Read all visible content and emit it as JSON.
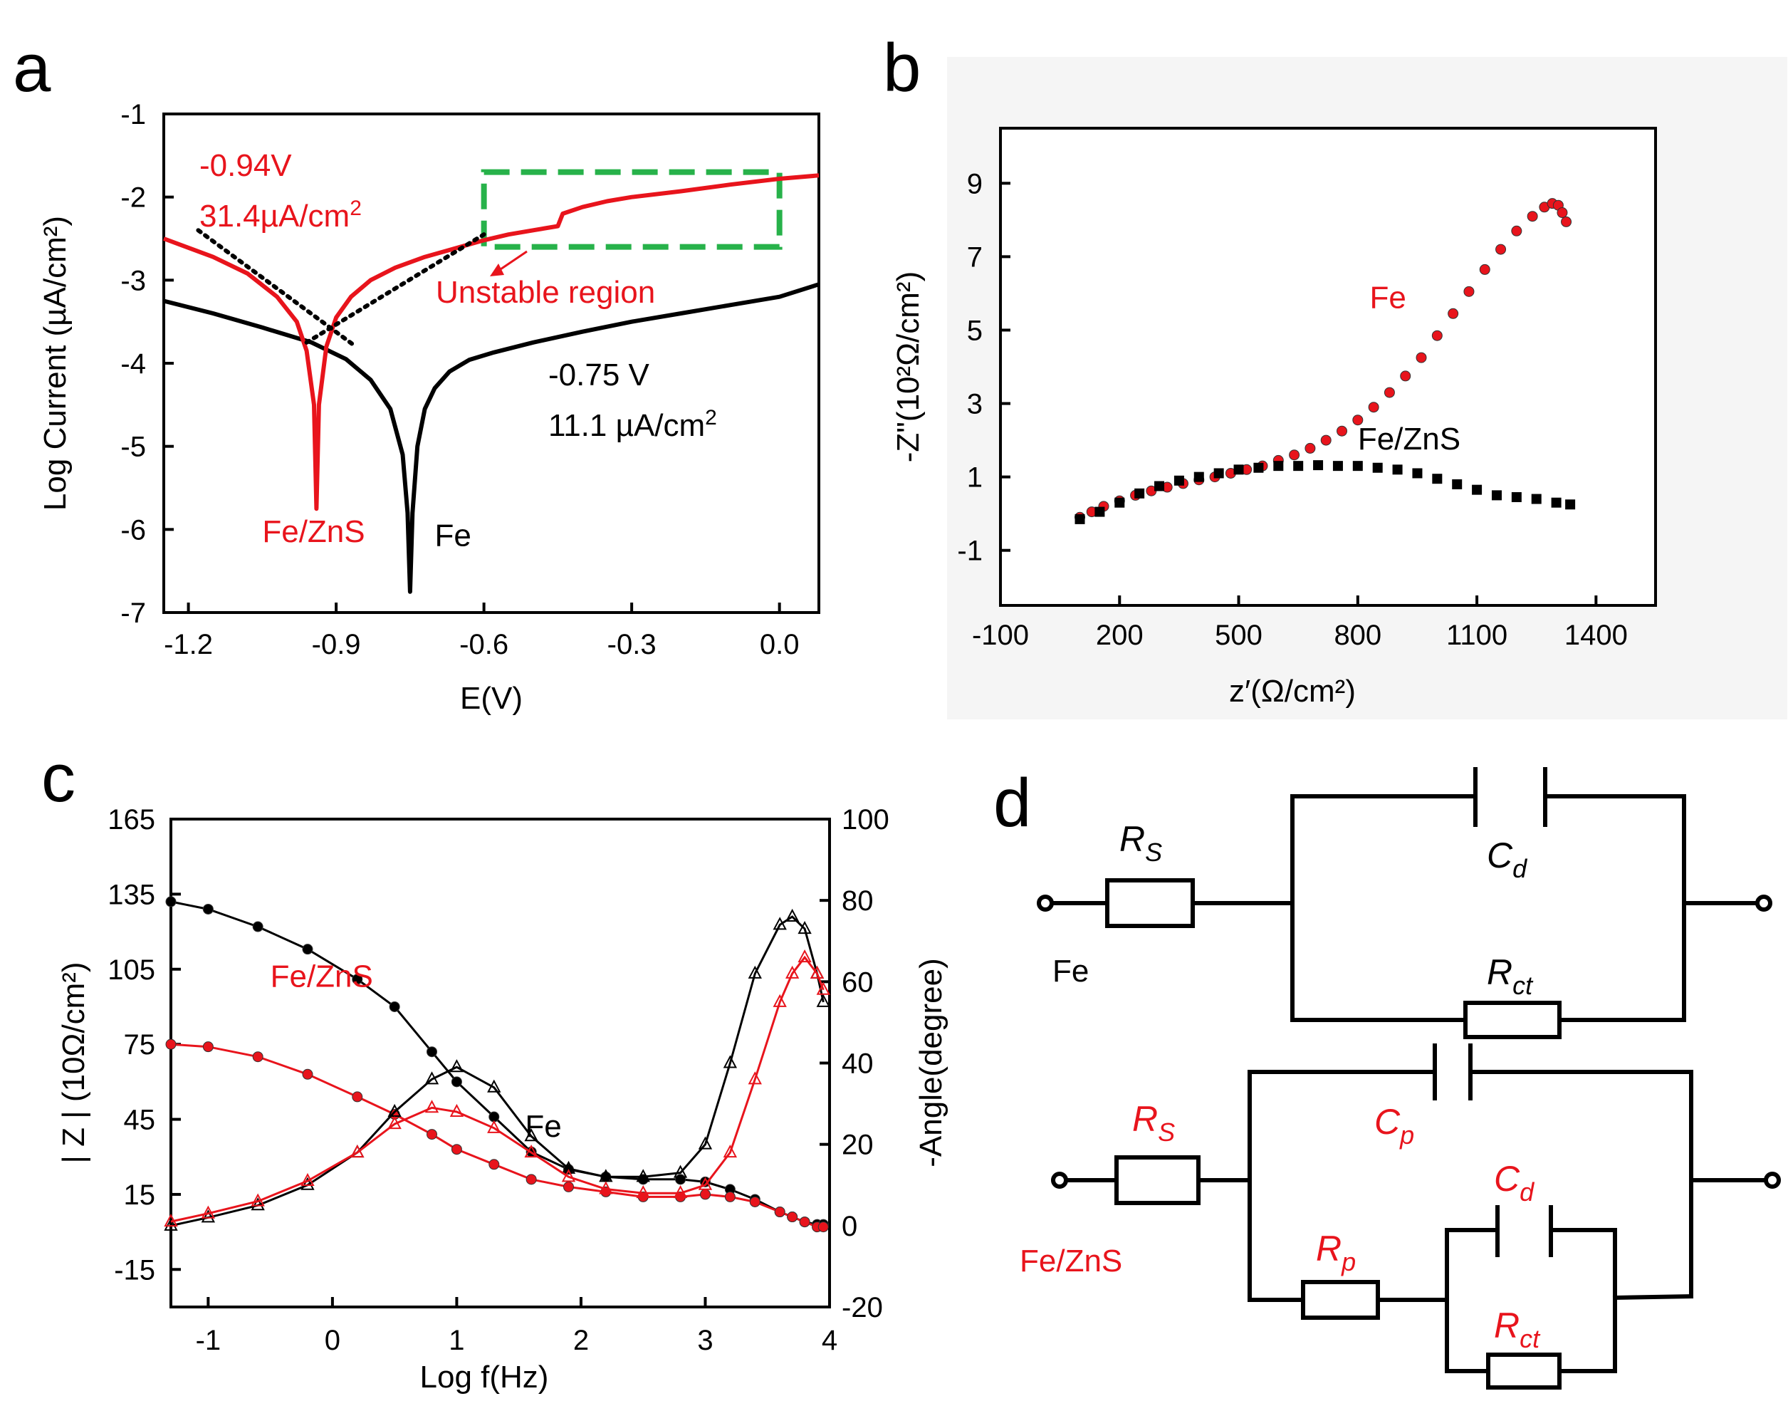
{
  "colors": {
    "fe": "#000000",
    "fezns": "#e8141c",
    "unstable_box": "#27b24a",
    "axis": "#000000"
  },
  "chart_data": [
    {
      "panel_label": "a",
      "type": "line",
      "title": "",
      "xlabel": "E(V)",
      "ylabel": "Log Current (µA/cm²)",
      "xlim": [
        -1.25,
        0.08
      ],
      "ylim": [
        -7,
        -1
      ],
      "x_ticks": [
        -1.2,
        -0.9,
        -0.6,
        -0.3,
        0.0
      ],
      "x_tick_labels": [
        "-1.2",
        "-0.9",
        "-0.6",
        "-0.3",
        "0.0"
      ],
      "y_ticks": [
        -1,
        -2,
        -3,
        -4,
        -5,
        -6,
        -7
      ],
      "y_tick_labels": [
        "-1",
        "-2",
        "-3",
        "-4",
        "-5",
        "-6",
        "-7"
      ],
      "series": [
        {
          "name": "Fe",
          "color": "#000000",
          "label": "Fe",
          "label_at": [
            -0.7,
            -6.2
          ],
          "x": [
            -1.25,
            -1.15,
            -1.05,
            -0.95,
            -0.88,
            -0.83,
            -0.79,
            -0.765,
            -0.755,
            -0.75,
            -0.745,
            -0.735,
            -0.72,
            -0.7,
            -0.67,
            -0.63,
            -0.58,
            -0.5,
            -0.4,
            -0.3,
            -0.2,
            -0.1,
            0.0,
            0.08
          ],
          "y": [
            -3.25,
            -3.4,
            -3.57,
            -3.75,
            -3.95,
            -4.2,
            -4.55,
            -5.1,
            -5.8,
            -6.75,
            -5.8,
            -5.0,
            -4.55,
            -4.3,
            -4.1,
            -3.96,
            -3.87,
            -3.75,
            -3.62,
            -3.5,
            -3.4,
            -3.3,
            -3.2,
            -3.05
          ]
        },
        {
          "name": "Fe/ZnS",
          "color": "#e8141c",
          "label": "Fe/ZnS",
          "label_at": [
            -1.05,
            -6.15
          ],
          "x": [
            -1.25,
            -1.15,
            -1.08,
            -1.02,
            -0.98,
            -0.96,
            -0.945,
            -0.94,
            -0.935,
            -0.92,
            -0.9,
            -0.87,
            -0.83,
            -0.78,
            -0.72,
            -0.66,
            -0.6,
            -0.55,
            -0.5,
            -0.45,
            -0.44,
            -0.4,
            -0.35,
            -0.3,
            -0.2,
            -0.1,
            0.0,
            0.08
          ],
          "y": [
            -2.5,
            -2.72,
            -2.92,
            -3.2,
            -3.5,
            -3.85,
            -4.5,
            -5.75,
            -4.5,
            -3.8,
            -3.45,
            -3.2,
            -3.0,
            -2.85,
            -2.72,
            -2.62,
            -2.52,
            -2.45,
            -2.4,
            -2.35,
            -2.2,
            -2.12,
            -2.05,
            -2.0,
            -1.93,
            -1.85,
            -1.78,
            -1.74
          ]
        }
      ],
      "tafel_lines": [
        {
          "x": [
            -1.18,
            -0.86
          ],
          "y": [
            -2.4,
            -3.8
          ]
        },
        {
          "x": [
            -0.96,
            -0.6
          ],
          "y": [
            -3.75,
            -2.45
          ]
        }
      ],
      "annotations": {
        "fezns_potential": "-0.94V",
        "fezns_current": "31.4µA/cm",
        "fezns_current_sup": "2",
        "fe_potential": "-0.75 V",
        "fe_current": "11.1 µA/cm",
        "fe_current_sup": "2",
        "unstable_region": "Unstable region",
        "unstable_box": {
          "x": [
            -0.6,
            0.0
          ],
          "y": [
            -1.7,
            -2.6
          ]
        }
      }
    },
    {
      "panel_label": "b",
      "type": "scatter",
      "title": "",
      "xlabel": "z′(Ω/cm²)",
      "ylabel": "-Z\"(10²Ω/cm²)",
      "xlim": [
        -100,
        1550
      ],
      "ylim": [
        -2.5,
        10.5
      ],
      "x_ticks": [
        -100,
        200,
        500,
        800,
        1100,
        1400
      ],
      "x_tick_labels": [
        "-100",
        "200",
        "500",
        "800",
        "1100",
        "1400"
      ],
      "y_ticks": [
        -1,
        1,
        3,
        5,
        7,
        9
      ],
      "y_tick_labels": [
        "-1",
        "1",
        "3",
        "5",
        "7",
        "9"
      ],
      "series": [
        {
          "name": "Fe",
          "color": "#e8141c",
          "marker": "circle",
          "label": "Fe",
          "label_at": [
            830,
            5.6
          ],
          "x": [
            100,
            130,
            160,
            200,
            240,
            280,
            320,
            360,
            400,
            440,
            480,
            520,
            560,
            600,
            640,
            680,
            720,
            760,
            800,
            840,
            880,
            920,
            960,
            1000,
            1040,
            1080,
            1120,
            1160,
            1200,
            1240,
            1270,
            1290,
            1305,
            1315,
            1325
          ],
          "y": [
            -0.1,
            0.05,
            0.2,
            0.35,
            0.5,
            0.62,
            0.72,
            0.82,
            0.92,
            1.0,
            1.1,
            1.2,
            1.3,
            1.45,
            1.6,
            1.78,
            2.0,
            2.25,
            2.55,
            2.9,
            3.3,
            3.75,
            4.25,
            4.85,
            5.45,
            6.05,
            6.65,
            7.2,
            7.7,
            8.1,
            8.35,
            8.45,
            8.4,
            8.2,
            7.95
          ]
        },
        {
          "name": "Fe/ZnS",
          "color": "#000000",
          "marker": "square",
          "label": "Fe/ZnS",
          "label_at": [
            800,
            1.75
          ],
          "x": [
            100,
            150,
            200,
            250,
            300,
            350,
            400,
            450,
            500,
            550,
            600,
            650,
            700,
            750,
            800,
            850,
            900,
            950,
            1000,
            1050,
            1100,
            1150,
            1200,
            1250,
            1300,
            1335
          ],
          "y": [
            -0.15,
            0.05,
            0.3,
            0.55,
            0.75,
            0.9,
            1.0,
            1.1,
            1.2,
            1.25,
            1.3,
            1.3,
            1.32,
            1.3,
            1.3,
            1.25,
            1.2,
            1.1,
            0.95,
            0.8,
            0.65,
            0.5,
            0.45,
            0.4,
            0.3,
            0.25
          ]
        }
      ]
    },
    {
      "panel_label": "c",
      "type": "line",
      "title": "",
      "xlabel": "Log f(Hz)",
      "ylabel": "| Z | (10Ω/cm²)",
      "y2label": "-Angle(degree)",
      "xlim": [
        -1.3,
        4
      ],
      "ylim": [
        -30,
        165
      ],
      "y2lim": [
        -20,
        100
      ],
      "x_ticks": [
        -1,
        0,
        1,
        2,
        3,
        4
      ],
      "x_tick_labels": [
        "-1",
        "0",
        "1",
        "2",
        "3",
        "4"
      ],
      "y_ticks": [
        165,
        135,
        105,
        75,
        45,
        15,
        -15
      ],
      "y_tick_labels": [
        "165",
        "135",
        "105",
        "75",
        "45",
        "15",
        "-15"
      ],
      "y2_ticks": [
        100,
        80,
        60,
        40,
        20,
        0,
        -20
      ],
      "y2_tick_labels": [
        "100",
        "80",
        "60",
        "40",
        "20",
        "0",
        "-20"
      ],
      "x": [
        -1.3,
        -1.0,
        -0.6,
        -0.2,
        0.2,
        0.5,
        0.8,
        1.0,
        1.3,
        1.6,
        1.9,
        2.2,
        2.5,
        2.8,
        3.0,
        3.2,
        3.4,
        3.6,
        3.7,
        3.8,
        3.9,
        3.95
      ],
      "series": [
        {
          "name": "Fe |Z|",
          "axis": "left",
          "color": "#000000",
          "marker": "circle",
          "y": [
            132,
            129,
            122,
            113,
            101,
            90,
            72,
            60,
            46,
            32,
            25,
            22,
            21,
            21,
            20,
            17,
            13,
            8,
            6,
            4,
            3,
            3
          ]
        },
        {
          "name": "Fe/ZnS |Z|",
          "axis": "left",
          "color": "#e8141c",
          "marker": "circle",
          "y": [
            75,
            74,
            70,
            63,
            54,
            47,
            39,
            33,
            27,
            21,
            18,
            16,
            14,
            14,
            15,
            14,
            12,
            8,
            6,
            4,
            2,
            2
          ]
        },
        {
          "name": "Fe angle",
          "axis": "right",
          "color": "#000000",
          "marker": "triangle",
          "y": [
            0,
            2,
            5,
            10,
            18,
            28,
            36,
            39,
            34,
            22,
            14,
            12,
            12,
            13,
            20,
            40,
            62,
            74,
            76,
            73,
            62,
            55
          ]
        },
        {
          "name": "Fe/ZnS angle",
          "axis": "right",
          "color": "#e8141c",
          "marker": "triangle",
          "y": [
            1,
            3,
            6,
            11,
            18,
            25,
            29,
            28,
            24,
            18,
            12,
            9,
            8,
            8,
            10,
            18,
            36,
            55,
            62,
            66,
            62,
            58
          ]
        }
      ],
      "labels": {
        "fe": "Fe",
        "fezns": "Fe/ZnS"
      },
      "label_at": {
        "fe": [
          1.55,
          38
        ],
        "fezns": [
          -0.5,
          98
        ]
      }
    }
  ],
  "circuits": {
    "panel_label": "d",
    "fe": {
      "label": "Fe",
      "rs": {
        "main": "R",
        "sub": "S"
      },
      "cd": {
        "main": "C",
        "sub": "d"
      },
      "rct": {
        "main": "R",
        "sub": "ct"
      }
    },
    "fezns": {
      "label": "Fe/ZnS",
      "rs": {
        "main": "R",
        "sub": "S"
      },
      "cp": {
        "main": "C",
        "sub": "p"
      },
      "rp": {
        "main": "R",
        "sub": "p"
      },
      "cd": {
        "main": "C",
        "sub": "d"
      },
      "rct": {
        "main": "R",
        "sub": "ct"
      }
    }
  }
}
